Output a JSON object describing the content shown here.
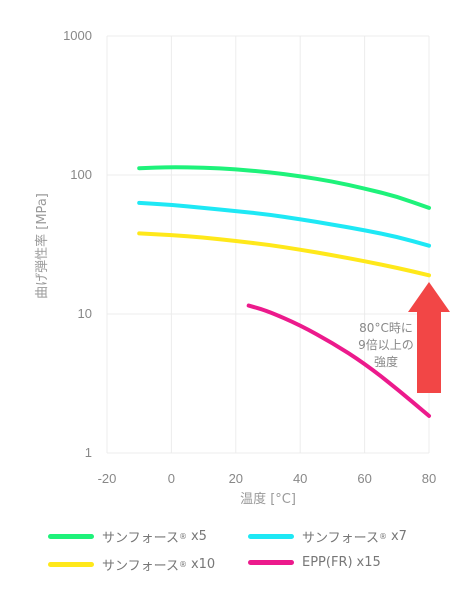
{
  "chart_data": {
    "type": "line",
    "xlabel": "温度 [°C]",
    "ylabel": "曲げ弾性率 [MPa]",
    "xlim": [
      -20,
      80
    ],
    "ylim": [
      1,
      1000
    ],
    "yscale": "log",
    "grid": true,
    "x_ticks": [
      "-20",
      "0",
      "20",
      "40",
      "60",
      "80"
    ],
    "y_ticks": [
      "1",
      "10",
      "100",
      "1000"
    ],
    "series": [
      {
        "name": "サンフォース",
        "suffix": "x5",
        "color": "#1ef27a",
        "x": [
          -10,
          0,
          10,
          20,
          30,
          40,
          50,
          60,
          70,
          80
        ],
        "y": [
          112,
          114,
          113,
          110,
          105,
          98,
          90,
          80,
          70,
          58
        ]
      },
      {
        "name": "サンフォース",
        "suffix": "x7",
        "color": "#1ee8f5",
        "x": [
          -10,
          0,
          10,
          20,
          30,
          40,
          50,
          60,
          70,
          80
        ],
        "y": [
          63,
          61,
          58,
          55,
          52,
          48,
          44,
          40,
          36,
          31
        ]
      },
      {
        "name": "サンフォース",
        "suffix": "x10",
        "color": "#ffe81a",
        "x": [
          -10,
          0,
          10,
          20,
          30,
          40,
          50,
          60,
          70,
          80
        ],
        "y": [
          38,
          37,
          35.5,
          33.5,
          31.5,
          29,
          26.5,
          24,
          21.5,
          19
        ]
      },
      {
        "name": "EPP(FR)",
        "suffix": "x15",
        "color": "#ec1a8c",
        "x": [
          24,
          30,
          40,
          50,
          60,
          70,
          80
        ],
        "y": [
          11.5,
          10.5,
          8.3,
          6.2,
          4.4,
          2.9,
          1.85
        ]
      }
    ],
    "legend_placement": "bottom",
    "annotation": {
      "lines": [
        "80°C時に",
        "9倍以上の",
        "強度"
      ],
      "arrow_color": "#f24646"
    }
  }
}
